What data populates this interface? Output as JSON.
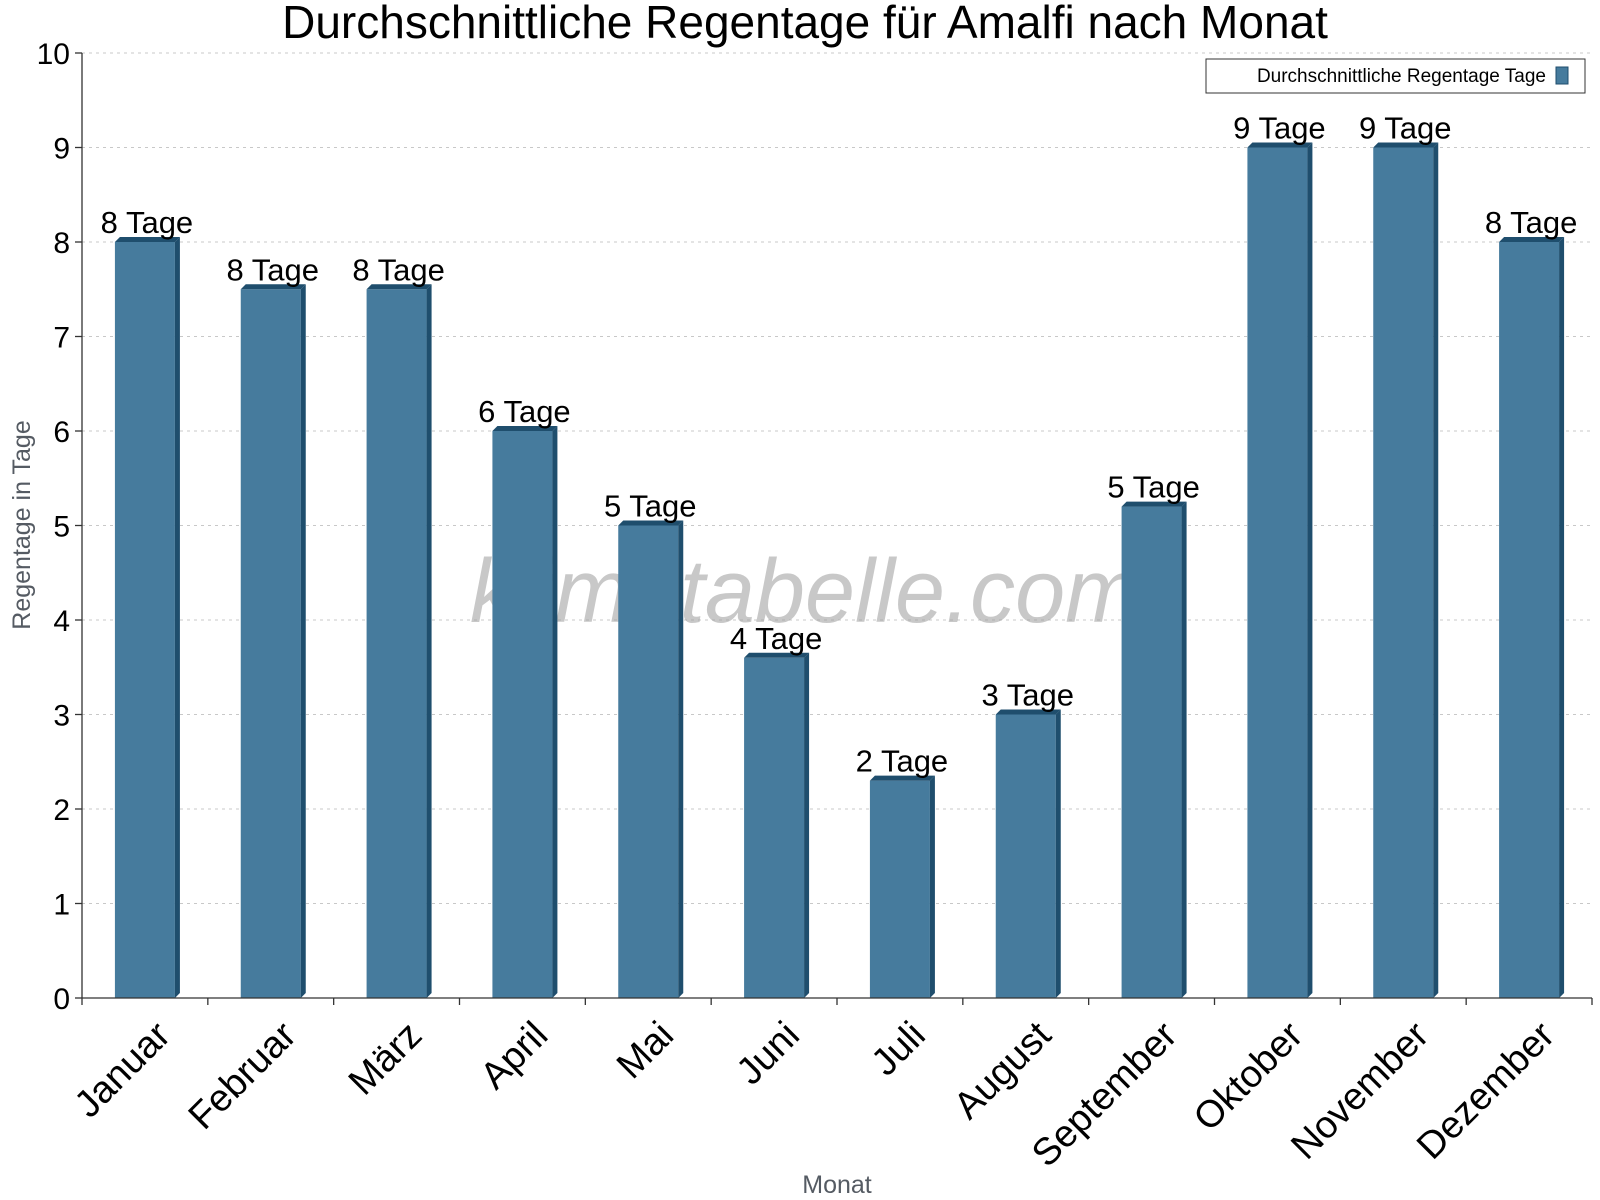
{
  "chart_data": {
    "type": "bar",
    "title": "Durchschnittliche Regentage für Amalfi nach Monat",
    "xlabel": "Monat",
    "ylabel": "Regentage in Tage",
    "ylim": [
      0,
      10
    ],
    "yticks": [
      "0",
      "1",
      "2",
      "3",
      "4",
      "5",
      "6",
      "7",
      "8",
      "9",
      "10"
    ],
    "grid": true,
    "legend_position": "top-right",
    "categories": [
      "Januar",
      "Februar",
      "März",
      "April",
      "Mai",
      "Juni",
      "Juli",
      "August",
      "September",
      "Oktober",
      "November",
      "Dezember"
    ],
    "series": [
      {
        "name": "Durchschnittliche Regentage Tage",
        "values": [
          8,
          7.5,
          7.5,
          6,
          5,
          3.6,
          2.3,
          3,
          5.2,
          9,
          9,
          8
        ],
        "labels": [
          "8 Tage",
          "8 Tage",
          "8 Tage",
          "6 Tage",
          "5 Tage",
          "4 Tage",
          "2 Tage",
          "3 Tage",
          "5 Tage",
          "9 Tage",
          "9 Tage",
          "8 Tage"
        ],
        "color": "#467b9d",
        "side_color": "#1f4e6d"
      }
    ],
    "watermark": "klimatabelle.com"
  }
}
